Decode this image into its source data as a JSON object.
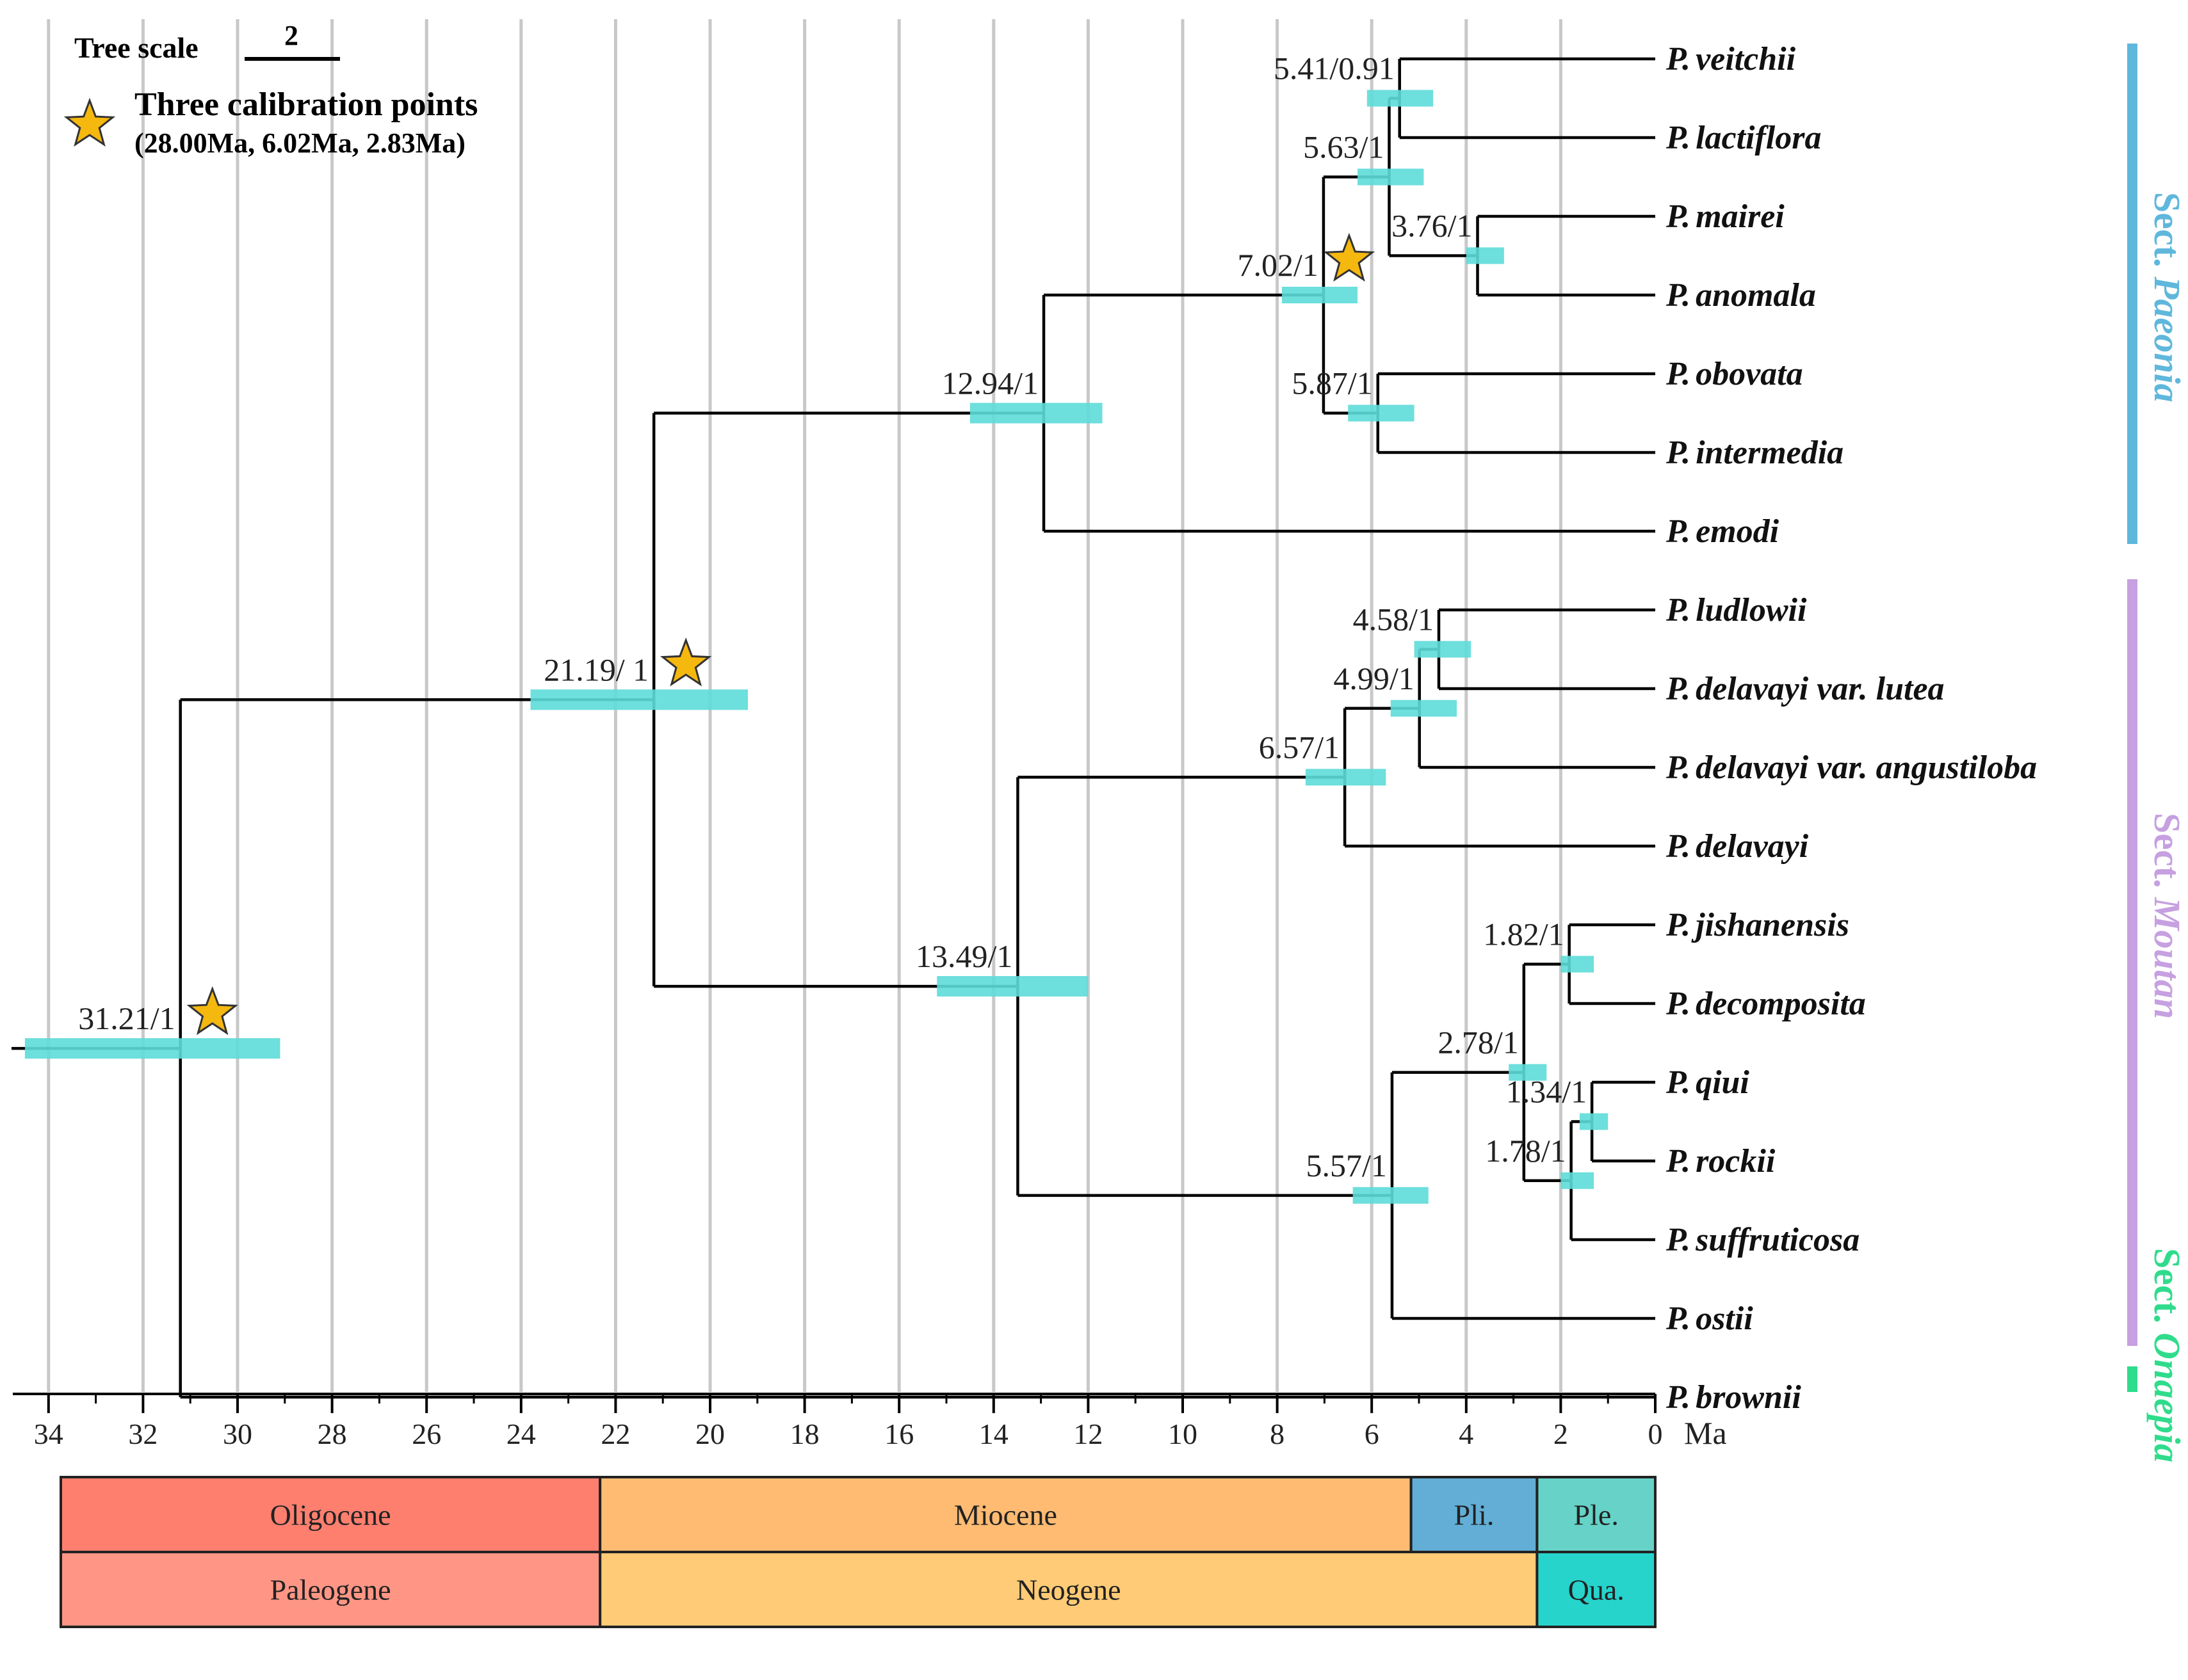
{
  "legend": {
    "scale_label": "Tree scale",
    "scale_value": "2",
    "calibration_title": "Three calibration points",
    "calibration_detail": "(28.00Ma, 6.02Ma, 2.83Ma)",
    "star_icon": "star-icon"
  },
  "axis": {
    "unit": "Ma",
    "ticks": [
      34,
      32,
      30,
      28,
      26,
      24,
      22,
      20,
      18,
      16,
      14,
      12,
      10,
      8,
      6,
      4,
      2,
      0
    ],
    "range": [
      34.8,
      0
    ]
  },
  "taxa": [
    {
      "genus": "P.",
      "epithet": "veitchii"
    },
    {
      "genus": "P.",
      "epithet": "lactiflora"
    },
    {
      "genus": "P.",
      "epithet": "mairei"
    },
    {
      "genus": "P.",
      "epithet": "anomala"
    },
    {
      "genus": "P.",
      "epithet": "obovata"
    },
    {
      "genus": "P.",
      "epithet": "intermedia"
    },
    {
      "genus": "P.",
      "epithet": "emodi"
    },
    {
      "genus": "P.",
      "epithet": "ludlowii"
    },
    {
      "genus": "P.",
      "epithet": "delavayi var. lutea"
    },
    {
      "genus": "P.",
      "epithet": "delavayi var. angustiloba"
    },
    {
      "genus": "P.",
      "epithet": "delavayi"
    },
    {
      "genus": "P.",
      "epithet": "jishanensis"
    },
    {
      "genus": "P.",
      "epithet": "decomposita"
    },
    {
      "genus": "P.",
      "epithet": "qiui"
    },
    {
      "genus": "P.",
      "epithet": "rockii"
    },
    {
      "genus": "P.",
      "epithet": "suffruticosa"
    },
    {
      "genus": "P.",
      "epithet": "ostii"
    },
    {
      "genus": "P.",
      "epithet": "brownii"
    }
  ],
  "nodes": [
    {
      "id": "root",
      "age": 31.21,
      "label": "31.21/1",
      "hpd": [
        34.5,
        29.1
      ],
      "children": [
        "n2119",
        "t17"
      ],
      "star": true
    },
    {
      "id": "n2119",
      "age": 21.19,
      "label": "21.19/ 1",
      "hpd": [
        23.8,
        19.2
      ],
      "children": [
        "n1294",
        "n1349"
      ],
      "star": true
    },
    {
      "id": "n1294",
      "age": 12.94,
      "label": "12.94/1",
      "hpd": [
        14.5,
        11.7
      ],
      "children": [
        "n702",
        "t6"
      ]
    },
    {
      "id": "n702",
      "age": 7.02,
      "label": "7.02/1",
      "hpd": [
        7.9,
        6.3
      ],
      "children": [
        "n563",
        "n587"
      ],
      "star": true
    },
    {
      "id": "n563",
      "age": 5.63,
      "label": "5.63/1",
      "hpd": [
        6.3,
        4.9
      ],
      "children": [
        "n541",
        "n376"
      ]
    },
    {
      "id": "n541",
      "age": 5.41,
      "label": "5.41/0.91",
      "hpd": [
        6.1,
        4.7
      ],
      "children": [
        "t0",
        "t1"
      ]
    },
    {
      "id": "n376",
      "age": 3.76,
      "label": "3.76/1",
      "hpd": [
        4.0,
        3.2
      ],
      "children": [
        "t2",
        "t3"
      ]
    },
    {
      "id": "n587",
      "age": 5.87,
      "label": "5.87/1",
      "hpd": [
        6.5,
        5.1
      ],
      "children": [
        "t4",
        "t5"
      ]
    },
    {
      "id": "n1349",
      "age": 13.49,
      "label": "13.49/1",
      "hpd": [
        15.2,
        12.0
      ],
      "children": [
        "n657",
        "n557"
      ]
    },
    {
      "id": "n657",
      "age": 6.57,
      "label": "6.57/1",
      "hpd": [
        7.4,
        5.7
      ],
      "children": [
        "n499",
        "t10"
      ]
    },
    {
      "id": "n499",
      "age": 4.99,
      "label": "4.99/1",
      "hpd": [
        5.6,
        4.2
      ],
      "children": [
        "n458",
        "t9"
      ]
    },
    {
      "id": "n458",
      "age": 4.58,
      "label": "4.58/1",
      "hpd": [
        5.1,
        3.9
      ],
      "children": [
        "t7",
        "t8"
      ]
    },
    {
      "id": "n557",
      "age": 5.57,
      "label": "5.57/1",
      "hpd": [
        6.4,
        4.8
      ],
      "children": [
        "n278",
        "t16"
      ]
    },
    {
      "id": "n278",
      "age": 2.78,
      "label": "2.78/1",
      "hpd": [
        3.1,
        2.3
      ],
      "children": [
        "n182",
        "n178"
      ]
    },
    {
      "id": "n182",
      "age": 1.82,
      "label": "1.82/1",
      "hpd": [
        2.0,
        1.3
      ],
      "children": [
        "t11",
        "t12"
      ]
    },
    {
      "id": "n178",
      "age": 1.78,
      "label": "1.78/1",
      "hpd": [
        2.0,
        1.3
      ],
      "children": [
        "n134",
        "t15"
      ]
    },
    {
      "id": "n134",
      "age": 1.34,
      "label": "1.34/1",
      "hpd": [
        1.6,
        1.0
      ],
      "children": [
        "t13",
        "t14"
      ]
    }
  ],
  "sections": [
    {
      "prefix": "Sect. ",
      "name": "Paeonia",
      "color": "#5fb7dc"
    },
    {
      "prefix": "Sect. ",
      "name": "Moutan",
      "color": "#c6a0e0"
    },
    {
      "prefix": "Sect. ",
      "name": "Onaepia",
      "color": "#2fdc8c"
    }
  ],
  "colors": {
    "hpd": "#5ddcd8",
    "star": "#f5b80f",
    "grid": "#c8c8c8",
    "line": "#000000"
  },
  "timescale": {
    "epochs": [
      {
        "name": "Oligocene",
        "start": 34.8,
        "end": 23.03,
        "color": "#ff7f6f"
      },
      {
        "name": "Miocene",
        "start": 23.03,
        "end": 5.33,
        "color": "#ffbb72"
      },
      {
        "name": "Pli.",
        "start": 5.33,
        "end": 2.58,
        "color": "#62aed6"
      },
      {
        "name": "Ple.",
        "start": 2.58,
        "end": 0,
        "color": "#66d2c8"
      }
    ],
    "periods": [
      {
        "name": "Paleogene",
        "start": 34.8,
        "end": 23.03,
        "color": "#ff9685"
      },
      {
        "name": "Neogene",
        "start": 23.03,
        "end": 2.58,
        "color": "#ffcb76"
      },
      {
        "name": "Qua.",
        "start": 2.58,
        "end": 0,
        "color": "#26d4cc"
      }
    ]
  }
}
